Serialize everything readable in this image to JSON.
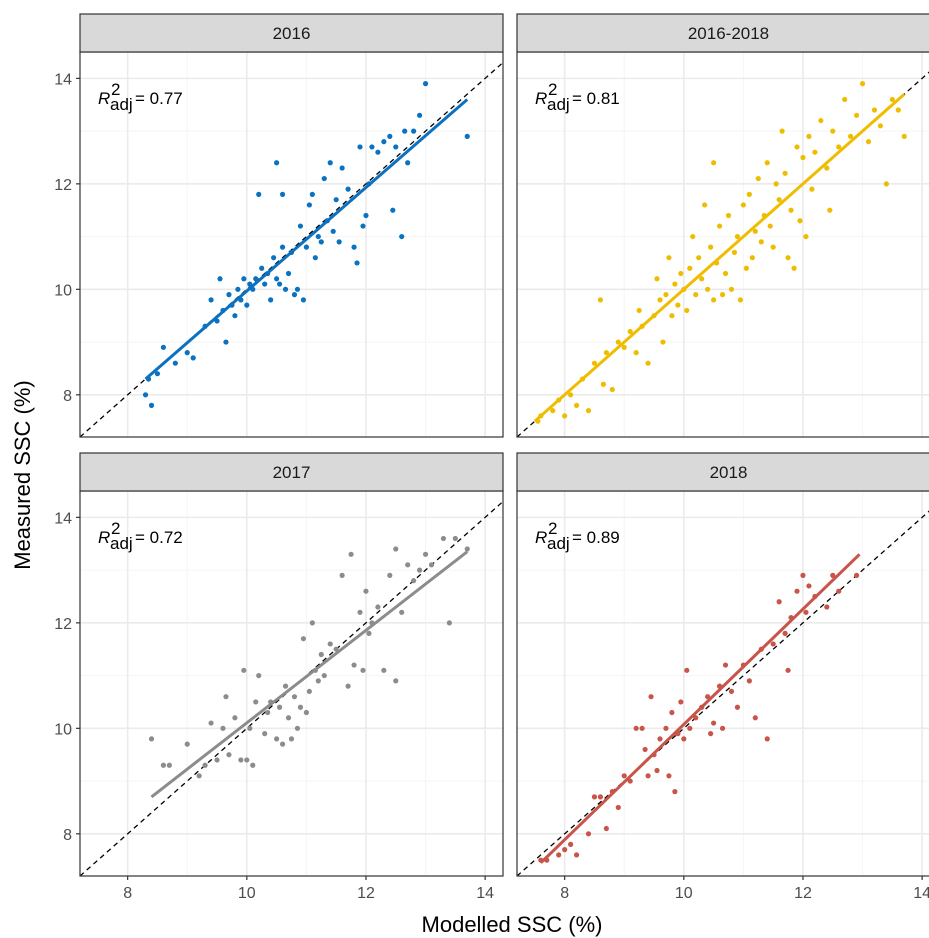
{
  "figure": {
    "xlabel": "Modelled SSC (%)",
    "ylabel": "Measured SSC (%)",
    "colors": {
      "strip_fill": "#d9d9d9",
      "grid_major": "#ebebeb",
      "grid_minor": "#f5f5f5",
      "panel_border": "#333333"
    }
  },
  "chart_data": [
    {
      "type": "scatter",
      "panel": "2016",
      "color": "#0a72c0",
      "xlim": [
        7.2,
        14.3
      ],
      "ylim": [
        7.2,
        14.5
      ],
      "x_ticks": [
        8,
        10,
        12,
        14
      ],
      "y_ticks": [
        8,
        10,
        12,
        14
      ],
      "annotation": {
        "r2_label": "R",
        "r2_sup": "2",
        "r2_sub": "adj",
        "r2_value": "= 0.77"
      },
      "identity_line": true,
      "fit_line": {
        "x": [
          8.3,
          13.7
        ],
        "y": [
          8.3,
          13.6
        ]
      },
      "points": [
        [
          8.3,
          8.0
        ],
        [
          8.4,
          7.8
        ],
        [
          8.35,
          8.3
        ],
        [
          8.5,
          8.4
        ],
        [
          8.6,
          8.9
        ],
        [
          8.8,
          8.6
        ],
        [
          9.0,
          8.8
        ],
        [
          9.1,
          8.7
        ],
        [
          9.3,
          9.3
        ],
        [
          9.4,
          9.8
        ],
        [
          9.5,
          9.4
        ],
        [
          9.55,
          10.2
        ],
        [
          9.6,
          9.6
        ],
        [
          9.65,
          9.0
        ],
        [
          9.7,
          9.9
        ],
        [
          9.75,
          9.7
        ],
        [
          9.8,
          9.5
        ],
        [
          9.85,
          10.0
        ],
        [
          9.9,
          9.8
        ],
        [
          9.95,
          10.2
        ],
        [
          10.0,
          9.7
        ],
        [
          10.05,
          10.1
        ],
        [
          10.1,
          10.0
        ],
        [
          10.15,
          10.2
        ],
        [
          10.2,
          11.8
        ],
        [
          10.25,
          10.4
        ],
        [
          10.3,
          10.1
        ],
        [
          10.35,
          10.3
        ],
        [
          10.4,
          9.8
        ],
        [
          10.45,
          10.6
        ],
        [
          10.5,
          10.2
        ],
        [
          10.5,
          12.4
        ],
        [
          10.55,
          10.1
        ],
        [
          10.6,
          10.8
        ],
        [
          10.6,
          11.8
        ],
        [
          10.65,
          10.0
        ],
        [
          10.7,
          10.3
        ],
        [
          10.75,
          10.7
        ],
        [
          10.8,
          9.9
        ],
        [
          10.85,
          10.0
        ],
        [
          10.9,
          11.2
        ],
        [
          10.95,
          9.8
        ],
        [
          11.0,
          10.8
        ],
        [
          11.05,
          11.6
        ],
        [
          11.1,
          11.8
        ],
        [
          11.15,
          10.6
        ],
        [
          11.2,
          11.0
        ],
        [
          11.25,
          10.9
        ],
        [
          11.3,
          12.1
        ],
        [
          11.35,
          11.3
        ],
        [
          11.4,
          12.4
        ],
        [
          11.45,
          11.1
        ],
        [
          11.5,
          11.7
        ],
        [
          11.55,
          10.9
        ],
        [
          11.6,
          12.3
        ],
        [
          11.7,
          11.9
        ],
        [
          11.8,
          10.8
        ],
        [
          11.85,
          10.5
        ],
        [
          11.9,
          12.7
        ],
        [
          11.95,
          11.2
        ],
        [
          12.0,
          11.4
        ],
        [
          12.05,
          12.0
        ],
        [
          12.1,
          12.7
        ],
        [
          12.2,
          12.6
        ],
        [
          12.3,
          12.8
        ],
        [
          12.4,
          12.9
        ],
        [
          12.45,
          11.5
        ],
        [
          12.5,
          12.7
        ],
        [
          12.6,
          11.0
        ],
        [
          12.65,
          13.0
        ],
        [
          12.7,
          12.4
        ],
        [
          12.8,
          13.0
        ],
        [
          12.9,
          13.3
        ],
        [
          13.0,
          13.9
        ],
        [
          13.7,
          12.9
        ]
      ]
    },
    {
      "type": "scatter",
      "panel": "2016-2018",
      "color": "#efbd00",
      "xlim": [
        7.2,
        14.3
      ],
      "ylim": [
        7.2,
        14.5
      ],
      "x_ticks": [
        8,
        10,
        12,
        14
      ],
      "y_ticks": [
        8,
        10,
        12,
        14
      ],
      "annotation": {
        "r2_label": "R",
        "r2_sup": "2",
        "r2_sub": "adj",
        "r2_value": "= 0.81"
      },
      "identity_line": true,
      "fit_line": {
        "x": [
          7.5,
          13.7
        ],
        "y": [
          7.5,
          13.7
        ]
      },
      "points": [
        [
          7.55,
          7.5
        ],
        [
          7.6,
          7.6
        ],
        [
          7.8,
          7.7
        ],
        [
          7.9,
          7.9
        ],
        [
          8.0,
          7.6
        ],
        [
          8.1,
          8.0
        ],
        [
          8.2,
          7.8
        ],
        [
          8.3,
          8.3
        ],
        [
          8.4,
          7.7
        ],
        [
          8.5,
          8.6
        ],
        [
          8.6,
          9.8
        ],
        [
          8.65,
          8.2
        ],
        [
          8.7,
          8.8
        ],
        [
          8.8,
          8.1
        ],
        [
          8.9,
          9.0
        ],
        [
          9.0,
          8.9
        ],
        [
          9.1,
          9.2
        ],
        [
          9.2,
          8.8
        ],
        [
          9.25,
          9.6
        ],
        [
          9.3,
          9.3
        ],
        [
          9.4,
          8.6
        ],
        [
          9.5,
          9.5
        ],
        [
          9.55,
          10.2
        ],
        [
          9.6,
          9.8
        ],
        [
          9.65,
          9.0
        ],
        [
          9.7,
          9.9
        ],
        [
          9.75,
          10.6
        ],
        [
          9.8,
          9.5
        ],
        [
          9.85,
          10.1
        ],
        [
          9.9,
          9.7
        ],
        [
          9.95,
          10.3
        ],
        [
          10.0,
          10.0
        ],
        [
          10.05,
          9.6
        ],
        [
          10.1,
          10.4
        ],
        [
          10.15,
          11.0
        ],
        [
          10.2,
          9.9
        ],
        [
          10.25,
          10.6
        ],
        [
          10.3,
          10.2
        ],
        [
          10.35,
          11.6
        ],
        [
          10.4,
          10.0
        ],
        [
          10.45,
          10.8
        ],
        [
          10.5,
          9.8
        ],
        [
          10.5,
          12.4
        ],
        [
          10.55,
          10.5
        ],
        [
          10.6,
          11.2
        ],
        [
          10.65,
          9.9
        ],
        [
          10.7,
          10.3
        ],
        [
          10.75,
          11.4
        ],
        [
          10.8,
          10.0
        ],
        [
          10.85,
          10.7
        ],
        [
          10.9,
          11.0
        ],
        [
          10.95,
          9.8
        ],
        [
          11.0,
          11.6
        ],
        [
          11.05,
          10.4
        ],
        [
          11.1,
          11.8
        ],
        [
          11.15,
          10.6
        ],
        [
          11.2,
          11.1
        ],
        [
          11.25,
          12.1
        ],
        [
          11.3,
          10.9
        ],
        [
          11.35,
          11.4
        ],
        [
          11.4,
          12.4
        ],
        [
          11.45,
          11.2
        ],
        [
          11.5,
          10.8
        ],
        [
          11.55,
          12.0
        ],
        [
          11.6,
          11.7
        ],
        [
          11.65,
          13.0
        ],
        [
          11.7,
          12.2
        ],
        [
          11.75,
          10.6
        ],
        [
          11.8,
          11.5
        ],
        [
          11.85,
          10.4
        ],
        [
          11.9,
          12.7
        ],
        [
          11.95,
          11.3
        ],
        [
          12.0,
          12.5
        ],
        [
          12.05,
          11.0
        ],
        [
          12.1,
          12.9
        ],
        [
          12.15,
          11.9
        ],
        [
          12.2,
          12.6
        ],
        [
          12.3,
          13.2
        ],
        [
          12.4,
          12.3
        ],
        [
          12.45,
          11.5
        ],
        [
          12.5,
          13.0
        ],
        [
          12.6,
          12.7
        ],
        [
          12.7,
          13.6
        ],
        [
          12.8,
          12.9
        ],
        [
          12.9,
          13.3
        ],
        [
          13.0,
          13.9
        ],
        [
          13.1,
          12.8
        ],
        [
          13.2,
          13.4
        ],
        [
          13.3,
          13.1
        ],
        [
          13.4,
          12.0
        ],
        [
          13.5,
          13.6
        ],
        [
          13.6,
          13.4
        ],
        [
          13.7,
          12.9
        ]
      ]
    },
    {
      "type": "scatter",
      "panel": "2017",
      "color": "#8c8c8c",
      "xlim": [
        7.2,
        14.3
      ],
      "ylim": [
        7.2,
        14.5
      ],
      "x_ticks": [
        8,
        10,
        12,
        14
      ],
      "y_ticks": [
        8,
        10,
        12,
        14
      ],
      "annotation": {
        "r2_label": "R",
        "r2_sup": "2",
        "r2_sub": "adj",
        "r2_value": "= 0.72"
      },
      "identity_line": true,
      "fit_line": {
        "x": [
          8.4,
          13.7
        ],
        "y": [
          8.7,
          13.35
        ]
      },
      "points": [
        [
          8.4,
          9.8
        ],
        [
          8.6,
          9.3
        ],
        [
          8.7,
          9.3
        ],
        [
          9.0,
          9.7
        ],
        [
          9.2,
          9.1
        ],
        [
          9.3,
          9.3
        ],
        [
          9.4,
          10.1
        ],
        [
          9.5,
          9.4
        ],
        [
          9.6,
          10.0
        ],
        [
          9.65,
          10.6
        ],
        [
          9.7,
          9.5
        ],
        [
          9.8,
          10.2
        ],
        [
          9.9,
          9.4
        ],
        [
          9.95,
          11.1
        ],
        [
          10.0,
          9.4
        ],
        [
          10.05,
          10.0
        ],
        [
          10.1,
          9.3
        ],
        [
          10.15,
          10.5
        ],
        [
          10.2,
          11.0
        ],
        [
          10.3,
          9.9
        ],
        [
          10.35,
          10.3
        ],
        [
          10.4,
          10.5
        ],
        [
          10.5,
          9.8
        ],
        [
          10.55,
          10.4
        ],
        [
          10.6,
          9.7
        ],
        [
          10.65,
          10.8
        ],
        [
          10.7,
          10.2
        ],
        [
          10.75,
          9.8
        ],
        [
          10.8,
          10.6
        ],
        [
          10.85,
          10.0
        ],
        [
          10.9,
          10.4
        ],
        [
          10.95,
          11.7
        ],
        [
          11.0,
          10.3
        ],
        [
          11.05,
          10.7
        ],
        [
          11.1,
          12.0
        ],
        [
          11.15,
          11.1
        ],
        [
          11.2,
          10.9
        ],
        [
          11.25,
          11.4
        ],
        [
          11.3,
          11.0
        ],
        [
          11.4,
          11.6
        ],
        [
          11.5,
          11.5
        ],
        [
          11.6,
          12.9
        ],
        [
          11.7,
          10.8
        ],
        [
          11.75,
          13.3
        ],
        [
          11.8,
          11.2
        ],
        [
          11.9,
          12.2
        ],
        [
          11.95,
          11.1
        ],
        [
          12.0,
          12.6
        ],
        [
          12.05,
          11.8
        ],
        [
          12.1,
          12.0
        ],
        [
          12.2,
          12.3
        ],
        [
          12.3,
          11.1
        ],
        [
          12.4,
          12.9
        ],
        [
          12.5,
          13.4
        ],
        [
          12.5,
          10.9
        ],
        [
          12.6,
          12.2
        ],
        [
          12.7,
          13.1
        ],
        [
          12.8,
          12.8
        ],
        [
          12.9,
          13.0
        ],
        [
          13.0,
          13.3
        ],
        [
          13.1,
          13.1
        ],
        [
          13.3,
          13.6
        ],
        [
          13.4,
          12.0
        ],
        [
          13.5,
          13.6
        ],
        [
          13.7,
          13.4
        ]
      ]
    },
    {
      "type": "scatter",
      "panel": "2018",
      "color": "#c8544a",
      "xlim": [
        7.2,
        14.3
      ],
      "ylim": [
        7.2,
        14.5
      ],
      "x_ticks": [
        8,
        10,
        12,
        14
      ],
      "y_ticks": [
        8,
        10,
        12,
        14
      ],
      "annotation": {
        "r2_label": "R",
        "r2_sup": "2",
        "r2_sub": "adj",
        "r2_value": "= 0.89"
      },
      "identity_line": true,
      "fit_line": {
        "x": [
          7.6,
          12.95
        ],
        "y": [
          7.45,
          13.3
        ]
      },
      "points": [
        [
          7.6,
          7.5
        ],
        [
          7.7,
          7.5
        ],
        [
          7.9,
          7.6
        ],
        [
          8.0,
          7.7
        ],
        [
          8.1,
          7.8
        ],
        [
          8.2,
          7.6
        ],
        [
          8.4,
          8.0
        ],
        [
          8.5,
          8.7
        ],
        [
          8.6,
          8.7
        ],
        [
          8.7,
          8.1
        ],
        [
          8.8,
          8.8
        ],
        [
          8.9,
          8.5
        ],
        [
          9.0,
          9.1
        ],
        [
          9.1,
          9.0
        ],
        [
          9.2,
          10.0
        ],
        [
          9.3,
          10.0
        ],
        [
          9.35,
          9.6
        ],
        [
          9.4,
          9.1
        ],
        [
          9.45,
          10.6
        ],
        [
          9.5,
          9.5
        ],
        [
          9.55,
          9.2
        ],
        [
          9.6,
          9.8
        ],
        [
          9.7,
          10.0
        ],
        [
          9.75,
          9.1
        ],
        [
          9.8,
          10.3
        ],
        [
          9.85,
          8.8
        ],
        [
          9.9,
          9.9
        ],
        [
          9.95,
          10.5
        ],
        [
          10.0,
          9.8
        ],
        [
          10.05,
          11.1
        ],
        [
          10.1,
          10.0
        ],
        [
          10.2,
          10.2
        ],
        [
          10.3,
          10.4
        ],
        [
          10.4,
          10.6
        ],
        [
          10.45,
          9.9
        ],
        [
          10.5,
          10.1
        ],
        [
          10.6,
          10.8
        ],
        [
          10.65,
          10.0
        ],
        [
          10.7,
          11.2
        ],
        [
          10.8,
          10.7
        ],
        [
          10.9,
          10.4
        ],
        [
          11.0,
          11.2
        ],
        [
          11.1,
          10.9
        ],
        [
          11.2,
          10.2
        ],
        [
          11.3,
          11.5
        ],
        [
          11.4,
          9.8
        ],
        [
          11.5,
          11.6
        ],
        [
          11.6,
          12.4
        ],
        [
          11.7,
          11.8
        ],
        [
          11.75,
          11.1
        ],
        [
          11.8,
          12.1
        ],
        [
          11.9,
          12.6
        ],
        [
          12.0,
          12.9
        ],
        [
          12.05,
          12.2
        ],
        [
          12.1,
          12.7
        ],
        [
          12.2,
          12.5
        ],
        [
          12.4,
          12.3
        ],
        [
          12.5,
          12.9
        ],
        [
          12.6,
          12.6
        ],
        [
          12.9,
          12.9
        ]
      ]
    }
  ]
}
